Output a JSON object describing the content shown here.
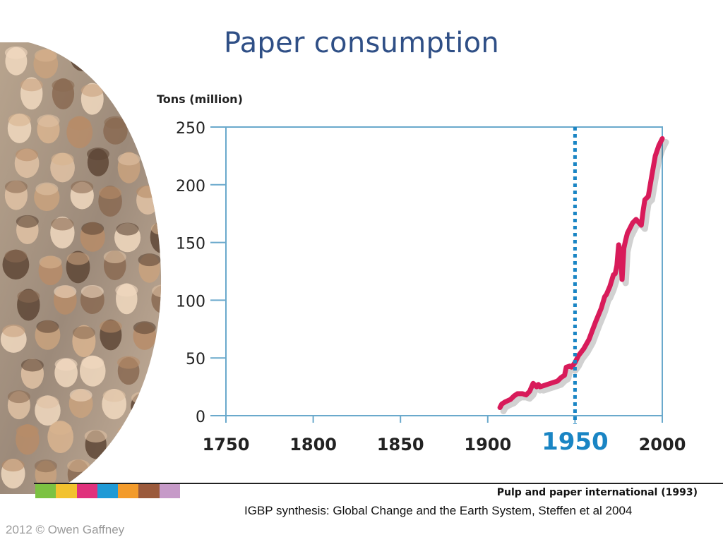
{
  "slide": {
    "title": "Paper consumption",
    "source_primary": "Pulp and paper international (1993)",
    "source_secondary": "IGBP synthesis: Global Change and the Earth System, Steffen et al 2004",
    "copyright": "2012 © Owen Gaffney"
  },
  "colors": {
    "title": "#2f4f86",
    "axis": "#6aa9cc",
    "series": "#d81b5a",
    "marker": "#1a85c4",
    "stripe": [
      "#7cc242",
      "#f2c22e",
      "#e0317c",
      "#1f9ad6",
      "#f39b2b",
      "#9b5a3c",
      "#c69ac8"
    ]
  },
  "chart_data": {
    "type": "line",
    "title": "",
    "xlabel": "",
    "ylabel": "Tons (million)",
    "xlim": [
      1750,
      2000
    ],
    "ylim": [
      0,
      250
    ],
    "xticks": [
      {
        "value": 1750,
        "label": "1750"
      },
      {
        "value": 1800,
        "label": "1800"
      },
      {
        "value": 1850,
        "label": "1850"
      },
      {
        "value": 1900,
        "label": "1900"
      },
      {
        "value": 1950,
        "label": "1950"
      },
      {
        "value": 2000,
        "label": "2000"
      }
    ],
    "yticks": [
      {
        "value": 0,
        "label": "0"
      },
      {
        "value": 50,
        "label": "50"
      },
      {
        "value": 100,
        "label": "100"
      },
      {
        "value": 150,
        "label": "150"
      },
      {
        "value": 200,
        "label": "200"
      },
      {
        "value": 250,
        "label": "250"
      }
    ],
    "grid": false,
    "highlight_x": {
      "value": 1950,
      "label": "1950"
    },
    "series": [
      {
        "x": [
          1907,
          1908,
          1910,
          1913,
          1915,
          1917,
          1920,
          1922,
          1924,
          1926,
          1928,
          1929,
          1930,
          1932,
          1934,
          1936,
          1938,
          1940,
          1942,
          1944,
          1945,
          1947,
          1948,
          1950,
          1952,
          1955,
          1958,
          1960,
          1962,
          1965,
          1967,
          1968,
          1970,
          1972,
          1973,
          1974,
          1975,
          1976,
          1977,
          1978,
          1979,
          1980,
          1983,
          1985,
          1988,
          1989,
          1990,
          1992,
          1994,
          1996,
          1998,
          2000
        ],
        "y": [
          7,
          10,
          12,
          14,
          17,
          19,
          19,
          18,
          21,
          28,
          25,
          27,
          25,
          26,
          27,
          28,
          29,
          30,
          33,
          35,
          42,
          43,
          42,
          46,
          52,
          58,
          66,
          74,
          82,
          93,
          103,
          105,
          112,
          122,
          123,
          130,
          148,
          140,
          118,
          145,
          152,
          158,
          167,
          170,
          165,
          177,
          187,
          190,
          208,
          225,
          234,
          240
        ]
      }
    ]
  }
}
